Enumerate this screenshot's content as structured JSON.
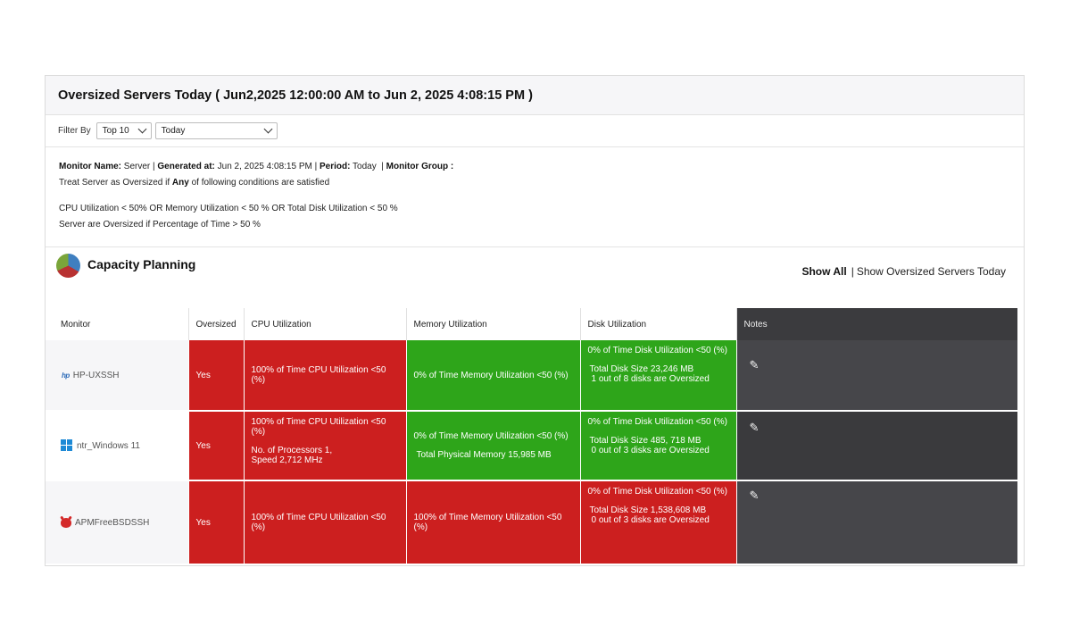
{
  "header": {
    "title": "Oversized Servers Today ( Jun2,2025 12:00:00 AM to Jun 2, 2025 4:08:15 PM )"
  },
  "filter": {
    "label": "Filter By",
    "top_value": "Top 10",
    "period_value": "Today"
  },
  "info": {
    "monitor_name_label": "Monitor Name:",
    "monitor_name": "Server",
    "generated_label": "Generated at:",
    "generated": "Jun 2, 2025 4:08:15 PM",
    "period_label": "Period:",
    "period": "Today",
    "group_label": "Monitor Group :",
    "rule_pre": "Treat Server as Oversized if",
    "rule_any": "Any",
    "rule_post": "of following conditions are satisfied",
    "conditions": "CPU Utilization < 50% OR Memory Utilization < 50 % OR Total Disk Utilization < 50 %",
    "threshold": "Server are Oversized if Percentage of Time > 50 %"
  },
  "capacity": {
    "title": "Capacity Planning",
    "show_all": "Show All",
    "separator": "|",
    "show_oversized": "Show Oversized Servers Today"
  },
  "table": {
    "headers": {
      "monitor": "Monitor",
      "oversized": "Oversized",
      "cpu": "CPU Utilization",
      "memory": "Memory Utilization",
      "disk": "Disk Utilization",
      "notes": "Notes"
    },
    "rows": [
      {
        "monitor": "HP-UXSSH",
        "icon": "hp-icon",
        "oversized": "Yes",
        "cpu_line1": "100% of Time CPU Utilization <50 (%)",
        "mem_line1": "0% of Time Memory Utilization <50 (%)",
        "disk_line1": "0% of Time Disk Utilization <50 (%)",
        "disk_line2": "Total Disk Size 23,246 MB",
        "disk_line3": "1 out of 8 disks are Oversized"
      },
      {
        "monitor": "ntr_Windows 11",
        "icon": "windows-icon",
        "oversized": "Yes",
        "cpu_line1": "100% of Time CPU Utilization <50 (%)",
        "cpu_line2": "No. of Processors 1,",
        "cpu_line3": "Speed 2,712 MHz",
        "mem_line1": "0% of Time Memory Utilization <50 (%)",
        "mem_line2": "Total Physical Memory 15,985 MB",
        "disk_line1": "0% of Time Disk Utilization <50 (%)",
        "disk_line2": "Total Disk Size 485, 718 MB",
        "disk_line3": "0 out of 3 disks are Oversized"
      },
      {
        "monitor": "APMFreeBSDSSH",
        "icon": "freebsd-icon",
        "oversized": "Yes",
        "cpu_line1": "100% of Time CPU Utilization <50 (%)",
        "mem_line1": "100% of Time Memory Utilization <50 (%)",
        "disk_line1": "0% of Time Disk Utilization <50 (%)",
        "disk_line2": "Total Disk Size 1,538,608 MB",
        "disk_line3": "0 out of 3 disks are Oversized"
      }
    ]
  },
  "colors": {
    "red": "#cc1f1f",
    "green": "#2ea51a",
    "notes_bg": "#46464a"
  }
}
